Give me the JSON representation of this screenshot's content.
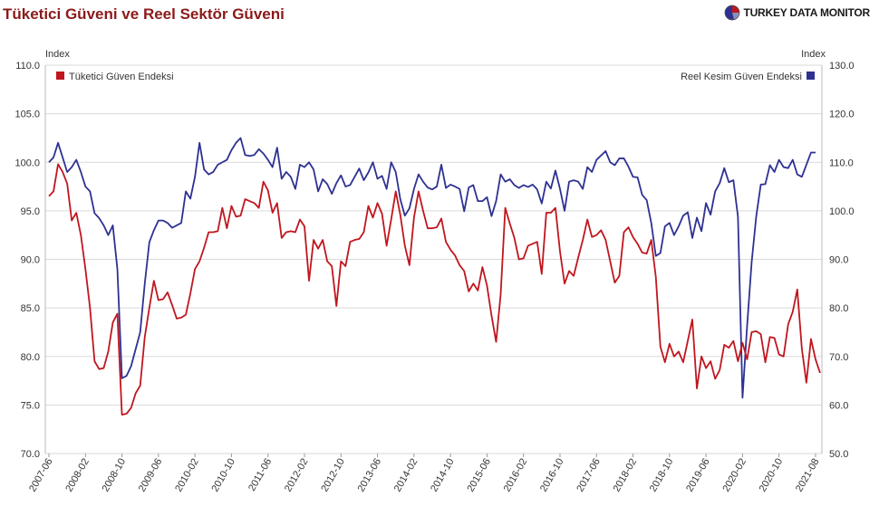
{
  "header": {
    "title": "Tüketici Güveni ve Reel Sektör Güveni",
    "brand": "TURKEY DATA MONITOR",
    "brand_logo_icon": "pie-globe-icon"
  },
  "colors": {
    "consumer": "#c0161e",
    "real": "#2e3192",
    "grid": "#d9d9d9",
    "axis_text": "#333333"
  },
  "chart_data": {
    "type": "line",
    "title": "Tüketici Güveni ve Reel Sektör Güveni",
    "left_axis": {
      "label": "Index",
      "range": [
        70,
        110
      ],
      "ticks": [
        "70.0",
        "75.0",
        "80.0",
        "85.0",
        "90.0",
        "95.0",
        "100.0",
        "105.0",
        "110.0"
      ]
    },
    "right_axis": {
      "label": "Index",
      "range": [
        50,
        130
      ],
      "ticks": [
        "50.0",
        "60.0",
        "70.0",
        "80.0",
        "90.0",
        "100.0",
        "110.0",
        "120.0",
        "130.0"
      ]
    },
    "x_axis": {
      "start": "2007-06",
      "tick_labels": [
        "2007-06",
        "2008-02",
        "2008-10",
        "2009-06",
        "2010-02",
        "2010-10",
        "2011-06",
        "2012-02",
        "2012-10",
        "2013-06",
        "2014-02",
        "2014-10",
        "2015-06",
        "2016-02",
        "2016-10",
        "2017-06",
        "2018-02",
        "2018-10",
        "2019-06",
        "2020-02",
        "2020-10",
        "2021-08"
      ]
    },
    "grid": "horizontal",
    "legend": [
      "top-left",
      "top-right"
    ],
    "series": [
      {
        "name": "Tüketici Güven Endeksi",
        "axis": "left",
        "color": "#c0161e",
        "frequency": "monthly",
        "start": "2007-06",
        "values": [
          96.5,
          97.0,
          99.8,
          99.0,
          97.8,
          94.0,
          94.8,
          92.5,
          89.0,
          85.0,
          79.5,
          78.7,
          78.8,
          80.5,
          83.5,
          84.4,
          74.0,
          74.1,
          74.7,
          76.2,
          77.0,
          82.0,
          85.0,
          87.8,
          85.8,
          85.9,
          86.6,
          85.3,
          83.9,
          84.0,
          84.3,
          86.5,
          89.0,
          89.8,
          91.2,
          92.8,
          92.8,
          92.9,
          95.3,
          93.2,
          95.5,
          94.4,
          94.5,
          96.2,
          96.0,
          95.8,
          95.3,
          98.0,
          97.1,
          94.8,
          95.8,
          92.2,
          92.8,
          92.9,
          92.8,
          94.1,
          93.4,
          87.8,
          92.0,
          91.1,
          92.0,
          89.8,
          89.3,
          85.2,
          89.8,
          89.3,
          91.8,
          92.0,
          92.1,
          92.8,
          95.5,
          94.3,
          95.8,
          94.7,
          91.4,
          94.1,
          97.0,
          94.6,
          91.4,
          89.4,
          94.3,
          97.0,
          95.0,
          93.2,
          93.2,
          93.3,
          94.2,
          91.8,
          91.0,
          90.4,
          89.4,
          88.8,
          86.7,
          87.5,
          86.8,
          89.2,
          87.3,
          84.2,
          81.5,
          86.4,
          95.3,
          93.7,
          92.2,
          90.0,
          90.1,
          91.4,
          91.6,
          91.8,
          88.5,
          94.8,
          94.8,
          95.3,
          90.8,
          87.5,
          88.8,
          88.3,
          90.2,
          92.0,
          94.1,
          92.3,
          92.5,
          93.0,
          92.0,
          89.8,
          87.6,
          88.3,
          92.8,
          93.3,
          92.3,
          91.6,
          90.7,
          90.6,
          92.0,
          88.2,
          81.0,
          79.4,
          81.3,
          80.0,
          80.5,
          79.4,
          81.6,
          83.8,
          76.7,
          80.0,
          78.8,
          79.5,
          77.7,
          78.6,
          81.2,
          80.9,
          81.6,
          79.5,
          81.4,
          79.7,
          82.5,
          82.6,
          82.3,
          79.4,
          82.0,
          81.9,
          80.2,
          80.0,
          83.3,
          84.6,
          86.9,
          80.8,
          77.3,
          81.8,
          79.7,
          78.3
        ]
      },
      {
        "name": "Reel Kesim Güven Endeksi",
        "axis": "right",
        "color": "#2e3192",
        "frequency": "monthly",
        "start": "2007-06",
        "values": [
          110.0,
          111.0,
          114.0,
          111.0,
          108.0,
          109.0,
          110.5,
          108.0,
          105.0,
          104.0,
          99.5,
          98.5,
          97.0,
          95.0,
          97.0,
          88.0,
          65.5,
          66.0,
          68.0,
          71.5,
          75.0,
          85.0,
          93.5,
          96.0,
          98.0,
          98.0,
          97.5,
          96.5,
          97.0,
          97.5,
          104.0,
          102.5,
          107.0,
          114.0,
          108.5,
          107.5,
          108.0,
          109.5,
          110.0,
          110.5,
          112.5,
          114.0,
          115.0,
          111.5,
          111.3,
          111.5,
          112.7,
          111.8,
          110.5,
          109.0,
          113.0,
          106.6,
          108.0,
          107.0,
          104.5,
          109.5,
          109.0,
          110.0,
          108.5,
          104.0,
          106.5,
          105.5,
          103.5,
          105.7,
          107.3,
          105.0,
          105.3,
          107.0,
          108.7,
          106.3,
          107.9,
          110.0,
          106.6,
          107.2,
          104.5,
          110.0,
          108.0,
          102.4,
          99.0,
          100.5,
          104.5,
          107.5,
          106.0,
          104.8,
          104.4,
          105.0,
          109.5,
          104.7,
          105.4,
          105.0,
          104.5,
          99.9,
          104.8,
          105.3,
          102.0,
          102.0,
          102.8,
          98.9,
          102.0,
          107.5,
          106.0,
          106.5,
          105.3,
          104.7,
          105.3,
          104.9,
          105.4,
          104.4,
          101.5,
          106.0,
          104.6,
          108.3,
          104.5,
          100.0,
          106.0,
          106.3,
          106.0,
          104.5,
          109.0,
          108.0,
          110.5,
          111.4,
          112.3,
          110.0,
          109.4,
          110.8,
          110.8,
          109.1,
          107.0,
          106.9,
          103.3,
          102.2,
          97.5,
          90.7,
          91.3,
          96.8,
          97.5,
          95.0,
          96.8,
          99.0,
          99.7,
          94.4,
          98.6,
          95.8,
          101.6,
          99.2,
          104.0,
          105.7,
          108.8,
          105.9,
          106.3,
          98.8,
          61.5,
          76.2,
          89.4,
          98.8,
          105.4,
          105.5,
          109.4,
          108.0,
          110.5,
          109.0,
          108.8,
          110.5,
          107.5,
          107.0,
          109.5,
          112.0,
          112.0
        ]
      }
    ]
  }
}
